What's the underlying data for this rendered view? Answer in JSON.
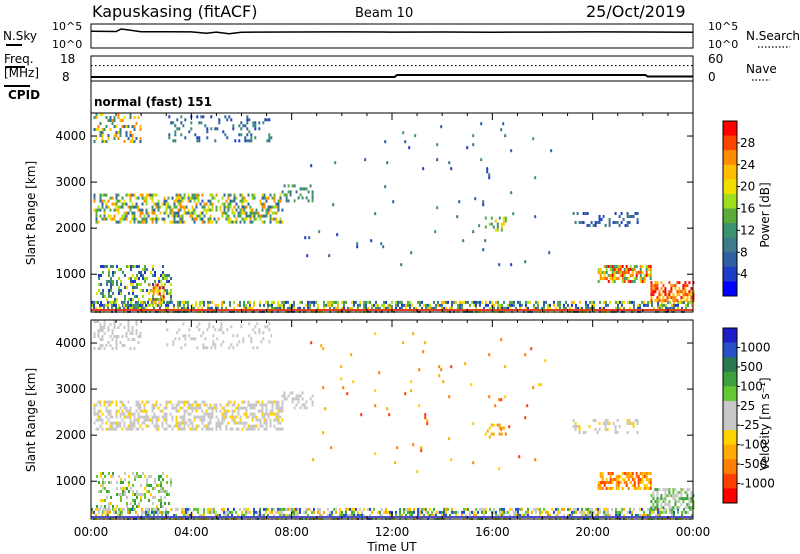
{
  "header": {
    "station": "Kapuskasing (fitACF)",
    "beam": "Beam 10",
    "date": "25/Oct/2019"
  },
  "chart_data": [
    {
      "type": "line",
      "panel": "noise",
      "left_label": "N.Sky",
      "right_label": "N.Search",
      "left_ticks": [
        "10^5",
        "10^0"
      ],
      "right_ticks": [
        "10^5",
        "10^0"
      ],
      "scale": "log",
      "ylim": [
        1,
        100000
      ],
      "x": [
        0,
        1,
        1.2,
        2,
        3,
        4,
        4.6,
        5,
        5.5,
        6,
        8,
        10,
        12,
        14,
        16,
        18,
        20,
        22,
        24
      ],
      "series": [
        {
          "values": [
            3000,
            2800,
            9000,
            2500,
            2400,
            2300,
            1200,
            2100,
            900,
            2000,
            2200,
            2300,
            2100,
            2200,
            2000,
            2100,
            2300,
            2200,
            1900
          ]
        }
      ]
    },
    {
      "type": "line",
      "panel": "frequency",
      "left_label": "Freq. [MHz]",
      "right_label": "Nave",
      "left_ticks": [
        "18",
        "8"
      ],
      "right_ticks": [
        "60",
        "0"
      ],
      "freq_mhz": [
        [
          0,
          9.6
        ],
        [
          12.1,
          9.6
        ],
        [
          12.2,
          10.4
        ],
        [
          22.1,
          10.4
        ],
        [
          22.2,
          9.8
        ],
        [
          24,
          9.8
        ]
      ],
      "nave_level": 37
    },
    {
      "type": "table",
      "panel": "cpid",
      "label": "CPID",
      "mode_text": "normal (fast) 151"
    },
    {
      "type": "heatmap",
      "panel": "power",
      "ylabel": "Slant Range [km]",
      "yticks": [
        1000,
        2000,
        3000,
        4000
      ],
      "ylim": [
        180,
        4500
      ],
      "xlim": [
        0,
        24
      ],
      "colorbar_label": "Power [dB]",
      "colorbar_ticks": [
        "28",
        "24",
        "20",
        "16",
        "12",
        "8",
        "4"
      ],
      "colorbar_colors": [
        "#ff0000",
        "#ff4400",
        "#ff8c00",
        "#ffbe00",
        "#f0e000",
        "#9ee01e",
        "#5aaa3c",
        "#3c9370",
        "#3c7a8c",
        "#2f5fa0",
        "#1e3cc8",
        "#0000ff"
      ],
      "regions": [
        {
          "t": [
            0.1,
            2.0
          ],
          "r": [
            3900,
            4500
          ],
          "d": 0.35,
          "c": [
            2,
            3,
            4,
            7,
            8,
            9
          ]
        },
        {
          "t": [
            3.0,
            7.2
          ],
          "r": [
            3900,
            4450
          ],
          "d": 0.18,
          "c": [
            7,
            8,
            9,
            10
          ]
        },
        {
          "t": [
            0.1,
            7.6
          ],
          "r": [
            2150,
            2750
          ],
          "d": 0.5,
          "c": [
            2,
            3,
            4,
            5,
            6,
            7,
            8,
            9
          ]
        },
        {
          "t": [
            7.6,
            8.8
          ],
          "r": [
            2600,
            2950
          ],
          "d": 0.3,
          "c": [
            6,
            7,
            8
          ]
        },
        {
          "t": [
            15.7,
            16.5
          ],
          "r": [
            1950,
            2250
          ],
          "d": 0.35,
          "c": [
            3,
            4,
            5,
            6,
            7
          ]
        },
        {
          "t": [
            19.2,
            21.8
          ],
          "r": [
            2050,
            2350
          ],
          "d": 0.3,
          "c": [
            9,
            10,
            8
          ]
        },
        {
          "t": [
            0.2,
            3.2
          ],
          "r": [
            300,
            1200
          ],
          "d": 0.35,
          "c": [
            4,
            5,
            6,
            7,
            8,
            9,
            10
          ]
        },
        {
          "t": [
            2.3,
            2.9
          ],
          "r": [
            350,
            800
          ],
          "d": 0.55,
          "c": [
            0,
            1,
            2,
            3,
            4
          ]
        },
        {
          "t": [
            0,
            24
          ],
          "r": [
            190,
            420
          ],
          "d": 0.55,
          "c": [
            3,
            4,
            5,
            6,
            7,
            8,
            9,
            10
          ]
        },
        {
          "t": [
            20.2,
            22.3
          ],
          "r": [
            850,
            1200
          ],
          "d": 0.6,
          "c": [
            0,
            1,
            2,
            3,
            4,
            5,
            6,
            7
          ]
        },
        {
          "t": [
            22.3,
            24
          ],
          "r": [
            400,
            850
          ],
          "d": 0.65,
          "c": [
            0,
            1,
            2,
            3
          ]
        },
        {
          "t": [
            8.5,
            18.5
          ],
          "r": [
            1200,
            4300
          ],
          "d": 0.01,
          "c": [
            7,
            8,
            9,
            10
          ]
        }
      ]
    },
    {
      "type": "heatmap",
      "panel": "velocity",
      "ylabel": "Slant Range [km]",
      "yticks": [
        1000,
        2000,
        3000,
        4000
      ],
      "ylim": [
        180,
        4500
      ],
      "xlim": [
        0,
        24
      ],
      "xlabel": "Time UT",
      "xticks": [
        "00:00",
        "04:00",
        "08:00",
        "12:00",
        "16:00",
        "20:00",
        "00:00"
      ],
      "colorbar_label": "Velocity [m s⁻¹]",
      "colorbar_ticks": [
        "1000",
        "500",
        "100",
        "25",
        "-25",
        "-100",
        "-500",
        "-1000"
      ],
      "colorbar_colors": [
        "#1e1ec8",
        "#2850c8",
        "#287850",
        "#3ca03c",
        "#64c832",
        "#c8c8c8",
        "#c8c8c8",
        "#ffd200",
        "#ffaa00",
        "#ff8000",
        "#ff4000",
        "#ff0000"
      ],
      "regions": [
        {
          "t": [
            0.1,
            2.0
          ],
          "r": [
            3900,
            4500
          ],
          "d": 0.3,
          "c": [
            5,
            6
          ]
        },
        {
          "t": [
            3.0,
            7.2
          ],
          "r": [
            3900,
            4450
          ],
          "d": 0.18,
          "c": [
            5,
            6
          ]
        },
        {
          "t": [
            0.1,
            7.6
          ],
          "r": [
            2150,
            2750
          ],
          "d": 0.5,
          "c": [
            5,
            6,
            5,
            6,
            7
          ]
        },
        {
          "t": [
            7.6,
            8.8
          ],
          "r": [
            2600,
            2950
          ],
          "d": 0.3,
          "c": [
            5,
            6
          ]
        },
        {
          "t": [
            15.7,
            16.5
          ],
          "r": [
            1950,
            2250
          ],
          "d": 0.35,
          "c": [
            8,
            9,
            7
          ]
        },
        {
          "t": [
            19.2,
            21.8
          ],
          "r": [
            2050,
            2350
          ],
          "d": 0.3,
          "c": [
            5,
            6,
            7
          ]
        },
        {
          "t": [
            0.2,
            3.2
          ],
          "r": [
            300,
            1200
          ],
          "d": 0.35,
          "c": [
            4,
            3,
            5,
            6,
            7
          ]
        },
        {
          "t": [
            0,
            24
          ],
          "r": [
            190,
            420
          ],
          "d": 0.55,
          "c": [
            3,
            4,
            5,
            6,
            7,
            8,
            1
          ]
        },
        {
          "t": [
            20.2,
            22.3
          ],
          "r": [
            850,
            1200
          ],
          "d": 0.6,
          "c": [
            7,
            8,
            9,
            10
          ]
        },
        {
          "t": [
            22.3,
            24
          ],
          "r": [
            400,
            850
          ],
          "d": 0.6,
          "c": [
            3,
            4,
            5,
            6
          ]
        },
        {
          "t": [
            8.5,
            18.5
          ],
          "r": [
            1200,
            4300
          ],
          "d": 0.01,
          "c": [
            7,
            8,
            9,
            10
          ]
        }
      ]
    }
  ]
}
